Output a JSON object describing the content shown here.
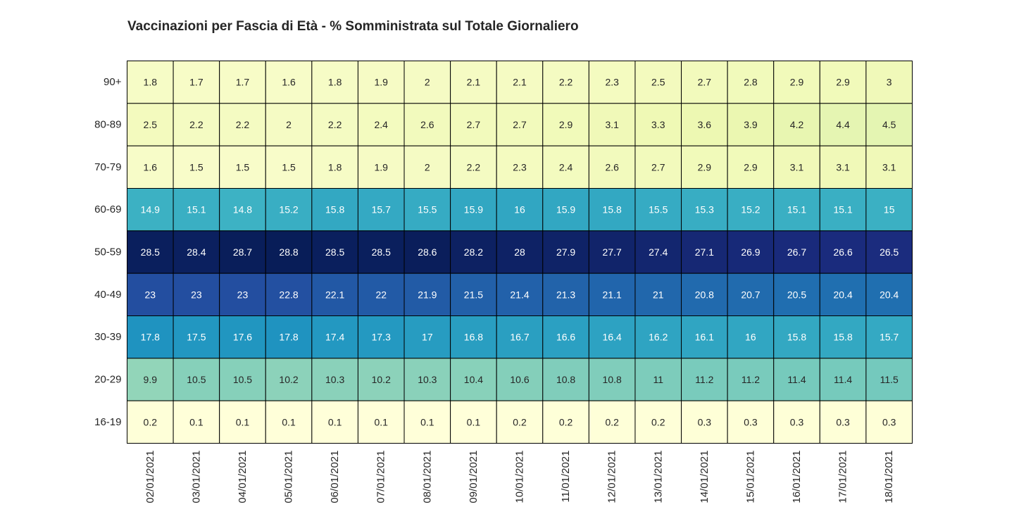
{
  "chart_data": {
    "type": "heatmap",
    "title": "Vaccinazioni per Fascia di Età - % Somministrata sul Totale Giornaliero",
    "xlabel": "",
    "ylabel": "",
    "colormap": "YlGnBu",
    "value_range": [
      0.1,
      28.8
    ],
    "x": [
      "02/01/2021",
      "03/01/2021",
      "04/01/2021",
      "05/01/2021",
      "06/01/2021",
      "07/01/2021",
      "08/01/2021",
      "09/01/2021",
      "10/01/2021",
      "11/01/2021",
      "12/01/2021",
      "13/01/2021",
      "14/01/2021",
      "15/01/2021",
      "16/01/2021",
      "17/01/2021",
      "18/01/2021"
    ],
    "y": [
      "90+",
      "80-89",
      "70-79",
      "60-69",
      "50-59",
      "40-49",
      "30-39",
      "20-29",
      "16-19"
    ],
    "values": [
      [
        1.8,
        1.7,
        1.7,
        1.6,
        1.8,
        1.9,
        2,
        2.1,
        2.1,
        2.2,
        2.3,
        2.5,
        2.7,
        2.8,
        2.9,
        2.9,
        3
      ],
      [
        2.5,
        2.2,
        2.2,
        2,
        2.2,
        2.4,
        2.6,
        2.7,
        2.7,
        2.9,
        3.1,
        3.3,
        3.6,
        3.9,
        4.2,
        4.4,
        4.5
      ],
      [
        1.6,
        1.5,
        1.5,
        1.5,
        1.8,
        1.9,
        2,
        2.2,
        2.3,
        2.4,
        2.6,
        2.7,
        2.9,
        2.9,
        3.1,
        3.1,
        3.1
      ],
      [
        14.9,
        15.1,
        14.8,
        15.2,
        15.8,
        15.7,
        15.5,
        15.9,
        16,
        15.9,
        15.8,
        15.5,
        15.3,
        15.2,
        15.1,
        15.1,
        15
      ],
      [
        28.5,
        28.4,
        28.7,
        28.8,
        28.5,
        28.5,
        28.6,
        28.2,
        28,
        27.9,
        27.7,
        27.4,
        27.1,
        26.9,
        26.7,
        26.6,
        26.5
      ],
      [
        23,
        23,
        23,
        22.8,
        22.1,
        22,
        21.9,
        21.5,
        21.4,
        21.3,
        21.1,
        21,
        20.8,
        20.7,
        20.5,
        20.4,
        20.4
      ],
      [
        17.8,
        17.5,
        17.6,
        17.8,
        17.4,
        17.3,
        17,
        16.8,
        16.7,
        16.6,
        16.4,
        16.2,
        16.1,
        16,
        15.8,
        15.8,
        15.7
      ],
      [
        9.9,
        10.5,
        10.5,
        10.2,
        10.3,
        10.2,
        10.3,
        10.4,
        10.6,
        10.8,
        10.8,
        11,
        11.2,
        11.2,
        11.4,
        11.4,
        11.5
      ],
      [
        0.2,
        0.1,
        0.1,
        0.1,
        0.1,
        0.1,
        0.1,
        0.1,
        0.2,
        0.2,
        0.2,
        0.2,
        0.3,
        0.3,
        0.3,
        0.3,
        0.3
      ]
    ],
    "annotations": true,
    "legend": "none"
  }
}
